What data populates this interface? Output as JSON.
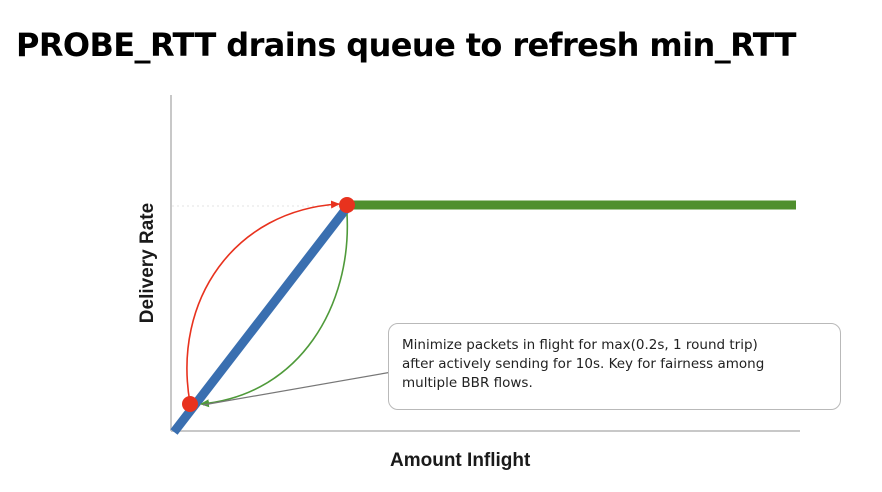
{
  "title": "PROBE_RTT drains queue to refresh min_RTT",
  "axes": {
    "x_label": "Amount Inflight",
    "y_label": "Delivery Rate"
  },
  "callout": {
    "lines": [
      "Minimize packets in flight for max(0.2s, 1 round trip)",
      "after actively sending for 10s. Key for  fairness among",
      "multiple BBR flows."
    ]
  },
  "colors": {
    "rising_line": "#3a6fb0",
    "plateau_line": "#4f8f2e",
    "point": "#e8321e",
    "forward_arrow": "#e8321e",
    "return_arrow": "#4f9a3a",
    "axis": "#c8c8c8"
  }
}
